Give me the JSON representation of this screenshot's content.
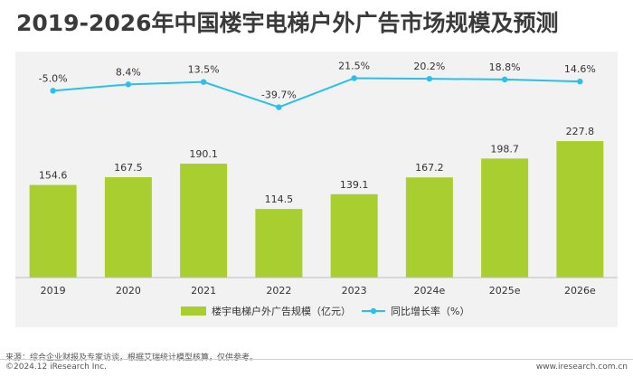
{
  "title": "2019-2026年中国楼宇电梯户外广告市场规模及预测",
  "chart_data": {
    "type": "bar",
    "categories": [
      "2019",
      "2020",
      "2021",
      "2022",
      "2023",
      "2024e",
      "2025e",
      "2026e"
    ],
    "series": [
      {
        "name": "楼宇电梯户外广告规模（亿元）",
        "type": "bar",
        "values": [
          154.6,
          167.5,
          190.1,
          114.5,
          139.1,
          167.2,
          198.7,
          227.8
        ],
        "labels": [
          "154.6",
          "167.5",
          "190.1",
          "114.5",
          "139.1",
          "167.2",
          "198.7",
          "227.8"
        ],
        "color": "#a8cf2f"
      },
      {
        "name": "同比增长率（%）",
        "type": "line",
        "values": [
          -5.0,
          8.4,
          13.5,
          -39.7,
          21.5,
          20.2,
          18.8,
          14.6
        ],
        "labels": [
          "-5.0%",
          "8.4%",
          "13.5%",
          "-39.7%",
          "21.5%",
          "20.2%",
          "18.8%",
          "14.6%"
        ],
        "color": "#29c0ea"
      }
    ],
    "bar_ylim": [
      0,
      240
    ],
    "line_ylim": [
      -90,
      30
    ],
    "grid": false,
    "legend_placement": "bottom-center"
  },
  "footer": {
    "source": "来源：综合企业财报及专家访谈，根据艾瑞统计模型核算，仅供参考。",
    "copyright": "©2024.12 iResearch Inc.",
    "url": "www.iresearch.com.cn"
  }
}
